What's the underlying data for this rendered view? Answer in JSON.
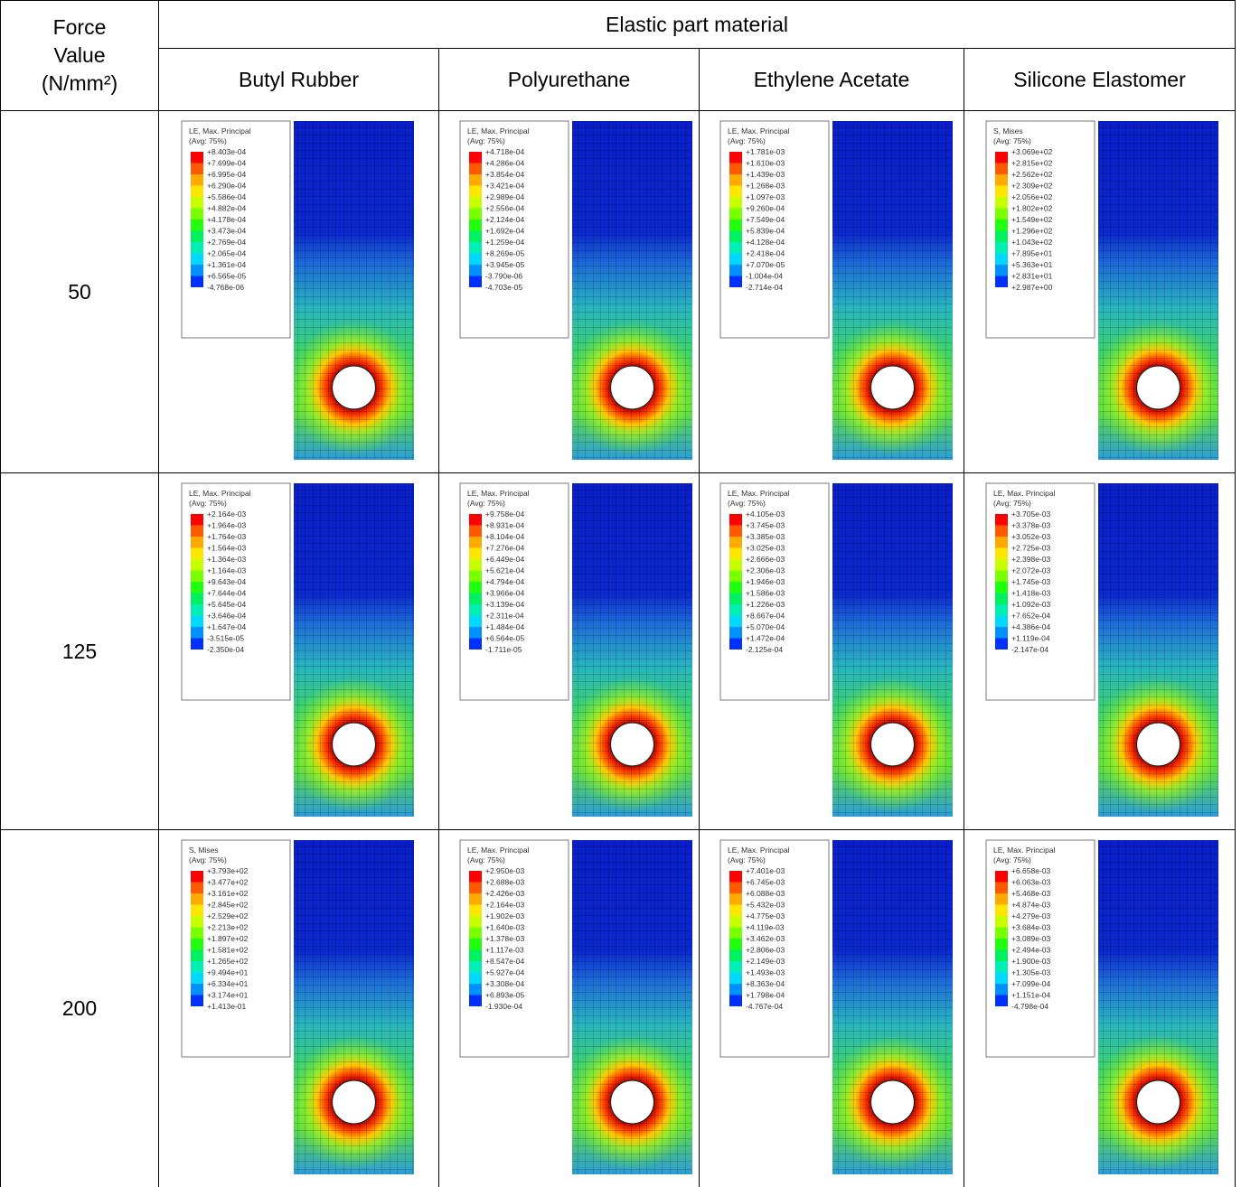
{
  "header": {
    "force_label": [
      "Force",
      "Value",
      "(N/mm²)"
    ],
    "group_label": "Elastic part material",
    "materials": [
      "Butyl Rubber",
      "Polyurethane",
      "Ethylene Acetate",
      "Silicone Elastomer"
    ]
  },
  "rows": [
    {
      "force": 50,
      "plots": [
        {
          "legend_title": "LE, Max. Principal",
          "legend_subtitle": "(Avg: 75%)",
          "legend_values": [
            "+8.403e-04",
            "+7.699e-04",
            "+6.995e-04",
            "+6.290e-04",
            "+5.586e-04",
            "+4.882e-04",
            "+4.178e-04",
            "+3.473e-04",
            "+2.769e-04",
            "+2.065e-04",
            "+1.361e-04",
            "+6.565e-05",
            "-4.768e-06"
          ]
        },
        {
          "legend_title": "LE, Max. Principal",
          "legend_subtitle": "(Avg: 75%)",
          "legend_values": [
            "+4.718e-04",
            "+4.286e-04",
            "+3.854e-04",
            "+3.421e-04",
            "+2.989e-04",
            "+2.556e-04",
            "+2.124e-04",
            "+1.692e-04",
            "+1.259e-04",
            "+8.269e-05",
            "+3.945e-05",
            "-3.790e-06",
            "-4.703e-05"
          ]
        },
        {
          "legend_title": "LE, Max. Principal",
          "legend_subtitle": "(Avg: 75%)",
          "legend_values": [
            "+1.781e-03",
            "+1.610e-03",
            "+1.439e-03",
            "+1.268e-03",
            "+1.097e-03",
            "+9.260e-04",
            "+7.549e-04",
            "+5.839e-04",
            "+4.128e-04",
            "+2.418e-04",
            "+7.070e-05",
            "-1.004e-04",
            "-2.714e-04"
          ]
        },
        {
          "legend_title": "S, Mises",
          "legend_subtitle": "(Avg: 75%)",
          "legend_values": [
            "+3.069e+02",
            "+2.815e+02",
            "+2.562e+02",
            "+2.309e+02",
            "+2.056e+02",
            "+1.802e+02",
            "+1.549e+02",
            "+1.296e+02",
            "+1.043e+02",
            "+7.895e+01",
            "+5.363e+01",
            "+2.831e+01",
            "+2.987e+00"
          ]
        }
      ]
    },
    {
      "force": 125,
      "plots": [
        {
          "legend_title": "LE, Max. Principal",
          "legend_subtitle": "(Avg: 75%)",
          "legend_values": [
            "+2.164e-03",
            "+1.964e-03",
            "+1.764e-03",
            "+1.564e-03",
            "+1.364e-03",
            "+1.164e-03",
            "+9.643e-04",
            "+7.644e-04",
            "+5.645e-04",
            "+3.646e-04",
            "+1.647e-04",
            "-3.515e-05",
            "-2.350e-04"
          ]
        },
        {
          "legend_title": "LE, Max. Principal",
          "legend_subtitle": "(Avg: 75%)",
          "legend_values": [
            "+9.758e-04",
            "+8.931e-04",
            "+8.104e-04",
            "+7.276e-04",
            "+6.449e-04",
            "+5.621e-04",
            "+4.794e-04",
            "+3.966e-04",
            "+3.139e-04",
            "+2.311e-04",
            "+1.484e-04",
            "+6.564e-05",
            "-1.711e-05"
          ]
        },
        {
          "legend_title": "LE, Max. Principal",
          "legend_subtitle": "(Avg: 75%)",
          "legend_values": [
            "+4.105e-03",
            "+3.745e-03",
            "+3.385e-03",
            "+3.025e-03",
            "+2.666e-03",
            "+2.306e-03",
            "+1.946e-03",
            "+1.586e-03",
            "+1.226e-03",
            "+8.667e-04",
            "+5.070e-04",
            "+1.472e-04",
            "-2.125e-04"
          ]
        },
        {
          "legend_title": "LE, Max. Principal",
          "legend_subtitle": "(Avg: 75%)",
          "legend_values": [
            "+3.705e-03",
            "+3.378e-03",
            "+3.052e-03",
            "+2.725e-03",
            "+2.398e-03",
            "+2.072e-03",
            "+1.745e-03",
            "+1.418e-03",
            "+1.092e-03",
            "+7.652e-04",
            "+4.386e-04",
            "+1.119e-04",
            "-2.147e-04"
          ]
        }
      ]
    },
    {
      "force": 200,
      "plots": [
        {
          "legend_title": "S, Mises",
          "legend_subtitle": "(Avg: 75%)",
          "legend_values": [
            "+3.793e+02",
            "+3.477e+02",
            "+3.161e+02",
            "+2.845e+02",
            "+2.529e+02",
            "+2.213e+02",
            "+1.897e+02",
            "+1.581e+02",
            "+1.265e+02",
            "+9.494e+01",
            "+6.334e+01",
            "+3.174e+01",
            "+1.413e-01"
          ]
        },
        {
          "legend_title": "LE, Max. Principal",
          "legend_subtitle": "(Avg: 75%)",
          "legend_values": [
            "+2.950e-03",
            "+2.688e-03",
            "+2.426e-03",
            "+2.164e-03",
            "+1.902e-03",
            "+1.640e-03",
            "+1.378e-03",
            "+1.117e-03",
            "+8.547e-04",
            "+5.927e-04",
            "+3.308e-04",
            "+6.893e-05",
            "-1.930e-04"
          ]
        },
        {
          "legend_title": "LE, Max. Principal",
          "legend_subtitle": "(Avg: 75%)",
          "legend_values": [
            "+7.401e-03",
            "+6.745e-03",
            "+6.088e-03",
            "+5.432e-03",
            "+4.775e-03",
            "+4.119e-03",
            "+3.462e-03",
            "+2.806e-03",
            "+2.149e-03",
            "+1.493e-03",
            "+8.363e-04",
            "+1.798e-04",
            "-4.767e-04"
          ]
        },
        {
          "legend_title": "LE, Max. Principal",
          "legend_subtitle": "(Avg: 75%)",
          "legend_values": [
            "+6.658e-03",
            "+6.063e-03",
            "+5.468e-03",
            "+4.874e-03",
            "+4.279e-03",
            "+3.684e-03",
            "+3.089e-03",
            "+2.494e-03",
            "+1.900e-03",
            "+1.305e-03",
            "+7.099e-04",
            "+1.151e-04",
            "-4.798e-04"
          ]
        }
      ]
    }
  ]
}
